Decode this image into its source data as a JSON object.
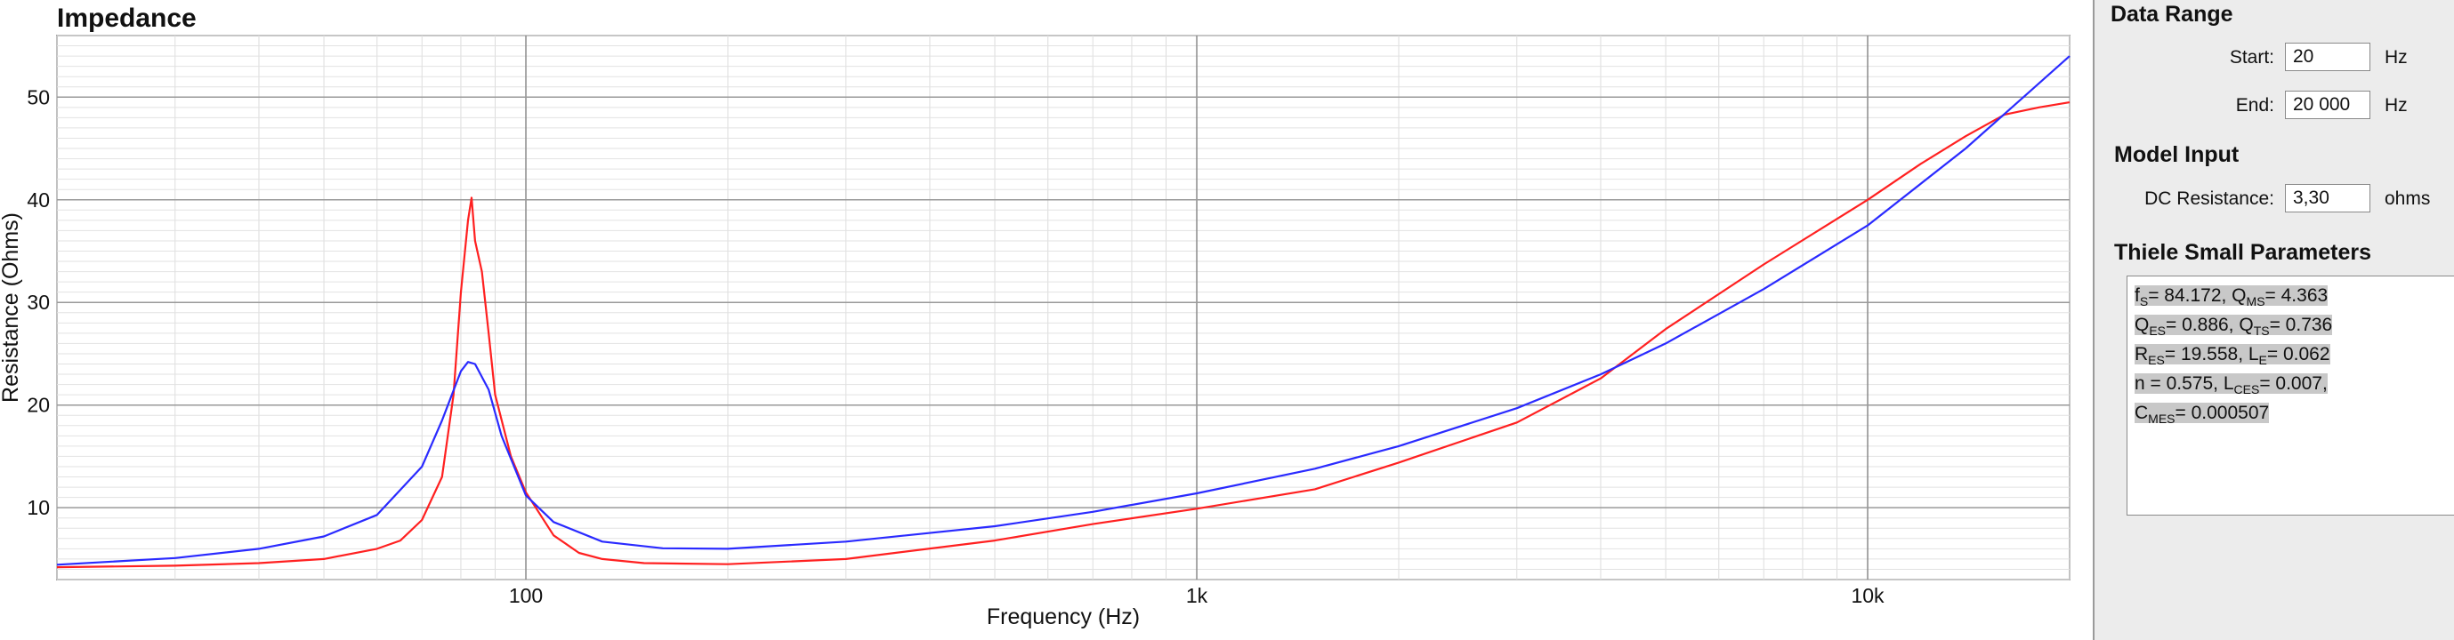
{
  "chart_data": {
    "type": "line",
    "title": "Impedance",
    "xlabel": "Frequency (Hz)",
    "ylabel": "Resistance (Ohms)",
    "xscale": "log",
    "xlim": [
      20,
      20000
    ],
    "ylim": [
      3,
      56
    ],
    "grid": true,
    "x_ticks": [
      {
        "value": 100,
        "label": "100"
      },
      {
        "value": 1000,
        "label": "1k"
      },
      {
        "value": 10000,
        "label": "10k"
      }
    ],
    "y_ticks": [
      10,
      20,
      30,
      40,
      50
    ],
    "series": [
      {
        "color": "#ff2020",
        "points": [
          [
            20,
            4.2
          ],
          [
            30,
            4.35
          ],
          [
            40,
            4.6
          ],
          [
            50,
            5.0
          ],
          [
            60,
            6.0
          ],
          [
            65,
            6.8
          ],
          [
            70,
            8.8
          ],
          [
            75,
            13
          ],
          [
            78,
            21
          ],
          [
            80,
            31
          ],
          [
            82,
            38
          ],
          [
            83,
            40.2
          ],
          [
            84,
            36
          ],
          [
            86,
            33
          ],
          [
            88,
            27
          ],
          [
            90,
            21
          ],
          [
            95,
            15
          ],
          [
            100,
            11.5
          ],
          [
            110,
            7.3
          ],
          [
            120,
            5.6
          ],
          [
            130,
            5.0
          ],
          [
            150,
            4.6
          ],
          [
            200,
            4.5
          ],
          [
            300,
            5.0
          ],
          [
            500,
            6.8
          ],
          [
            700,
            8.4
          ],
          [
            1000,
            9.9
          ],
          [
            1500,
            11.8
          ],
          [
            2000,
            14.4
          ],
          [
            3000,
            18.3
          ],
          [
            4000,
            22.6
          ],
          [
            5000,
            27.4
          ],
          [
            7000,
            33.7
          ],
          [
            10000,
            40.0
          ],
          [
            12000,
            43.5
          ],
          [
            14000,
            46.2
          ],
          [
            16000,
            48.3
          ],
          [
            18000,
            49.0
          ],
          [
            20000,
            49.5
          ]
        ]
      },
      {
        "color": "#2a2aff",
        "points": [
          [
            20,
            4.45
          ],
          [
            30,
            5.1
          ],
          [
            40,
            6.0
          ],
          [
            50,
            7.2
          ],
          [
            60,
            9.3
          ],
          [
            70,
            14
          ],
          [
            75,
            18.5
          ],
          [
            80,
            23.3
          ],
          [
            82,
            24.2
          ],
          [
            84,
            24.0
          ],
          [
            88,
            21.5
          ],
          [
            92,
            17
          ],
          [
            100,
            11.2
          ],
          [
            110,
            8.6
          ],
          [
            130,
            6.7
          ],
          [
            160,
            6.05
          ],
          [
            200,
            6.0
          ],
          [
            300,
            6.7
          ],
          [
            500,
            8.2
          ],
          [
            700,
            9.6
          ],
          [
            1000,
            11.4
          ],
          [
            1500,
            13.8
          ],
          [
            2000,
            16.0
          ],
          [
            3000,
            19.7
          ],
          [
            4000,
            23.0
          ],
          [
            5000,
            26.0
          ],
          [
            7000,
            31.3
          ],
          [
            10000,
            37.5
          ],
          [
            14000,
            45.0
          ],
          [
            20000,
            54.0
          ]
        ]
      }
    ]
  },
  "panel": {
    "data_range": {
      "title": "Data Range",
      "start_label": "Start:",
      "start_value": "20",
      "start_unit": "Hz",
      "end_label": "End:",
      "end_value": "20 000",
      "end_unit": "Hz"
    },
    "model_input": {
      "title": "Model Input",
      "dc_label": "DC Resistance:",
      "dc_value": "3,30",
      "dc_unit": "ohms"
    },
    "thiele_small": {
      "title": "Thiele Small Parameters",
      "lines": [
        [
          {
            "b": "f"
          },
          {
            "s": "S"
          },
          {
            "b": "= 84.172, Q"
          },
          {
            "s": "MS"
          },
          {
            "b": "= 4.363"
          }
        ],
        [
          {
            "b": "Q"
          },
          {
            "s": "ES"
          },
          {
            "b": "= 0.886, Q"
          },
          {
            "s": "TS"
          },
          {
            "b": "= 0.736"
          }
        ],
        [
          {
            "b": "R"
          },
          {
            "s": "ES"
          },
          {
            "b": "= 19.558, L"
          },
          {
            "s": "E"
          },
          {
            "b": "= 0.062"
          }
        ],
        [
          {
            "b": "n = 0.575, L"
          },
          {
            "s": "CES"
          },
          {
            "b": "= 0.007,"
          }
        ],
        [
          {
            "b": "C"
          },
          {
            "s": "MES"
          },
          {
            "b": "= 0.000507"
          }
        ]
      ]
    }
  }
}
